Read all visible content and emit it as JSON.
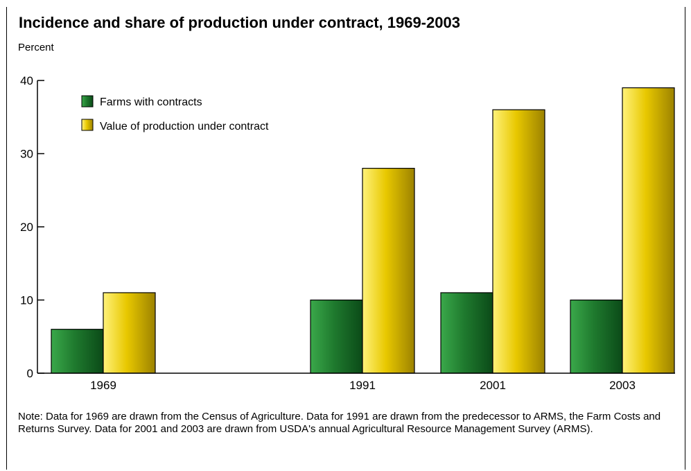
{
  "title": "Incidence and share of production under contract, 1969-2003",
  "ylabel": "Percent",
  "note": "Note:  Data for 1969 are drawn from the Census of Agriculture. Data for 1991 are drawn from the predecessor to ARMS, the Farm Costs and Returns Survey. Data for 2001 and 2003 are drawn from USDA's annual Agricultural Resource Management Survey (ARMS).",
  "colors": {
    "farms": "#1f7a2e",
    "value": "#e8c800"
  },
  "chart_data": {
    "type": "bar",
    "categories": [
      "1969",
      "1991",
      "2001",
      "2003"
    ],
    "series": [
      {
        "name": "Farms with contracts",
        "values": [
          6,
          10,
          11,
          10
        ]
      },
      {
        "name": "Value of production under contract",
        "values": [
          11,
          28,
          36,
          39
        ]
      }
    ],
    "ylim": [
      0,
      40
    ],
    "yticks": [
      0,
      10,
      20,
      30,
      40
    ],
    "ylabel": "Percent",
    "grid": false,
    "legend": "top-left"
  }
}
